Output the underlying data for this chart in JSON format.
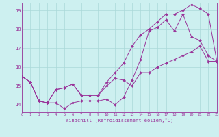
{
  "xlabel": "Windchill (Refroidissement éolien,°C)",
  "background_color": "#cdf0f0",
  "grid_color": "#aad8d8",
  "line_color": "#993399",
  "spine_color": "#993399",
  "x_ticks": [
    0,
    1,
    2,
    3,
    4,
    5,
    6,
    7,
    8,
    9,
    10,
    11,
    12,
    13,
    14,
    15,
    16,
    17,
    18,
    19,
    20,
    21,
    22,
    23
  ],
  "y_ticks": [
    14,
    15,
    16,
    17,
    18,
    19
  ],
  "xlim": [
    0,
    23
  ],
  "ylim": [
    13.6,
    19.4
  ],
  "series": [
    [
      15.5,
      15.2,
      14.2,
      14.1,
      14.1,
      13.8,
      14.1,
      14.2,
      14.2,
      14.2,
      14.3,
      14.0,
      14.4,
      15.3,
      16.4,
      17.9,
      18.1,
      18.5,
      17.9,
      18.8,
      17.6,
      17.4,
      16.6,
      16.3
    ],
    [
      15.5,
      15.2,
      14.2,
      14.1,
      14.8,
      14.9,
      15.1,
      14.5,
      14.5,
      14.5,
      15.2,
      15.7,
      16.2,
      17.1,
      17.7,
      18.0,
      18.4,
      18.8,
      18.8,
      19.0,
      19.3,
      19.1,
      18.8,
      16.3
    ],
    [
      15.5,
      15.2,
      14.2,
      14.1,
      14.8,
      14.9,
      15.1,
      14.5,
      14.5,
      14.5,
      15.0,
      15.4,
      15.3,
      15.0,
      15.7,
      15.7,
      16.0,
      16.2,
      16.4,
      16.6,
      16.8,
      17.1,
      16.3,
      16.3
    ]
  ]
}
